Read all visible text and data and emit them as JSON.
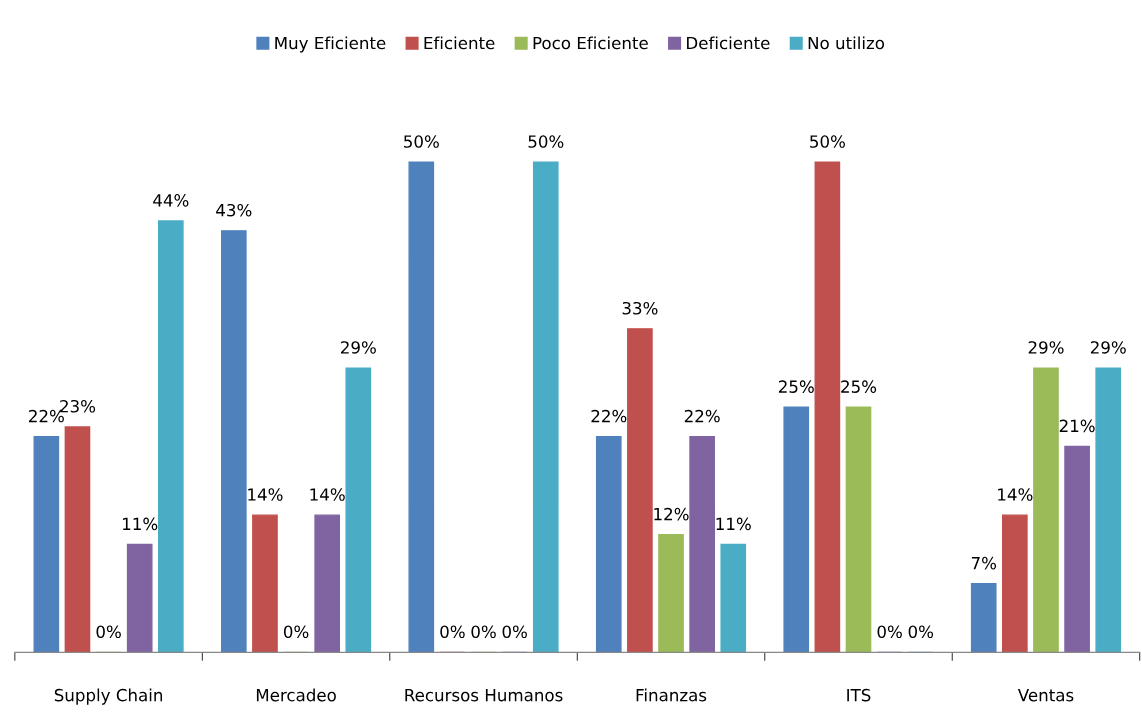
{
  "chart_data": {
    "type": "bar",
    "categories": [
      "Supply Chain",
      "Mercadeo",
      "Recursos Humanos",
      "Finanzas",
      "ITS",
      "Ventas"
    ],
    "series": [
      {
        "name": "Muy Eficiente",
        "color": "#4f81bd",
        "values": [
          22,
          43,
          50,
          22,
          25,
          7
        ],
        "value_labels": [
          "22%",
          "43%",
          "50%",
          "22%",
          "25%",
          "7%"
        ]
      },
      {
        "name": "Eficiente",
        "color": "#c0504d",
        "values": [
          23,
          14,
          0,
          33,
          50,
          14
        ],
        "value_labels": [
          "23%",
          "14%",
          "0%",
          "33%",
          "50%",
          "14%"
        ]
      },
      {
        "name": "Poco Eficiente",
        "color": "#9bbb59",
        "values": [
          0,
          0,
          0,
          12,
          25,
          29
        ],
        "value_labels": [
          "0%",
          "0%",
          "0%",
          "12%",
          "25%",
          "29%"
        ]
      },
      {
        "name": "Deficiente",
        "color": "#8064a2",
        "values": [
          11,
          14,
          0,
          22,
          0,
          21
        ],
        "value_labels": [
          "11%",
          "14%",
          "0%",
          "22%",
          "0%",
          "21%"
        ]
      },
      {
        "name": "No utilizo",
        "color": "#4bacc6",
        "values": [
          44,
          29,
          50,
          11,
          0,
          29
        ],
        "value_labels": [
          "44%",
          "29%",
          "50%",
          "11%",
          "0%",
          "29%"
        ]
      }
    ],
    "legend": "top",
    "grid": false
  }
}
